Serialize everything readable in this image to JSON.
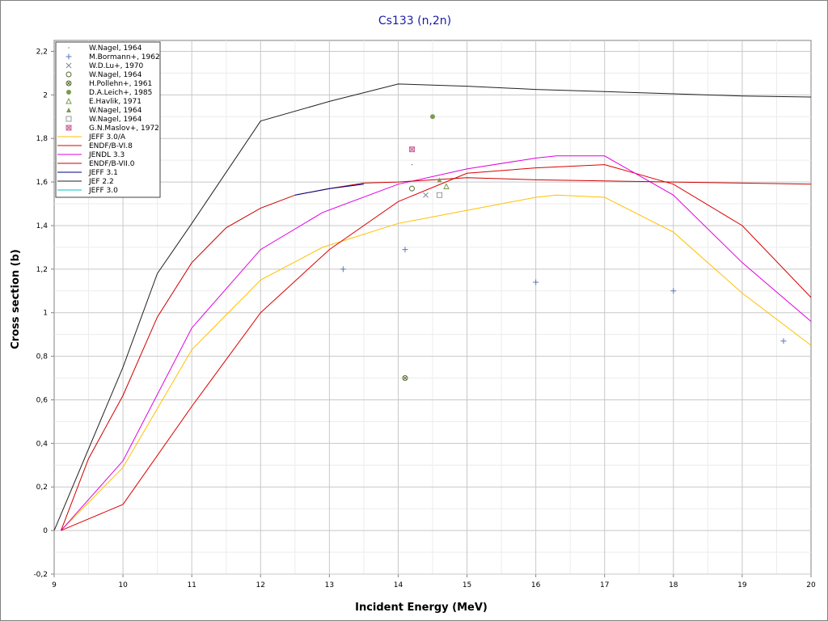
{
  "chart_data": {
    "type": "line",
    "title": "Cs133 (n,2n)",
    "xlabel": "Incident Energy (MeV)",
    "ylabel": "Cross section (b)",
    "xlim": [
      9,
      20
    ],
    "ylim": [
      -0.2,
      2.25
    ],
    "x_ticks": [
      "9",
      "10",
      "11",
      "12",
      "13",
      "14",
      "15",
      "16",
      "17",
      "18",
      "19",
      "20"
    ],
    "y_ticks": [
      "-0,2",
      "0",
      "0,2",
      "0,4",
      "0,6",
      "0,8",
      "1",
      "1,2",
      "1,4",
      "1,6",
      "1,8",
      "2",
      "2,2"
    ],
    "grid": true,
    "legend_position": "top-left",
    "experimental": [
      {
        "name": "W.Nagel, 1964",
        "marker": "dot",
        "color": "#556b2f",
        "points": [
          [
            14.2,
            1.68
          ]
        ]
      },
      {
        "name": "M.Bormann+, 1962",
        "marker": "plus",
        "color": "#5a7ab8",
        "points": [
          [
            13.2,
            1.2
          ],
          [
            14.1,
            1.29
          ],
          [
            16.0,
            1.14
          ],
          [
            18.0,
            1.1
          ],
          [
            19.6,
            0.87
          ]
        ]
      },
      {
        "name": "W.D.Lu+, 1970",
        "marker": "cross",
        "color": "#7a8899",
        "points": [
          [
            14.4,
            1.54
          ]
        ]
      },
      {
        "name": "W.Nagel, 1964",
        "marker": "circle",
        "color": "#556b2f",
        "points": [
          [
            14.2,
            1.57
          ]
        ]
      },
      {
        "name": "H.Pollehn+, 1961",
        "marker": "circle-x",
        "color": "#556b2f",
        "points": [
          [
            14.1,
            0.7
          ]
        ]
      },
      {
        "name": "D.A.Leich+, 1985",
        "marker": "filled-circle",
        "color": "#7a9a50",
        "points": [
          [
            14.5,
            1.9
          ]
        ]
      },
      {
        "name": "E.Havlik, 1971",
        "marker": "triangle",
        "color": "#7a9a50",
        "points": [
          [
            14.7,
            1.58
          ]
        ]
      },
      {
        "name": "W.Nagel, 1964",
        "marker": "filled-triangle",
        "color": "#7a9a50",
        "points": [
          [
            14.6,
            1.61
          ]
        ]
      },
      {
        "name": "W.Nagel, 1964",
        "marker": "square",
        "color": "#999999",
        "points": [
          [
            14.6,
            1.54
          ]
        ]
      },
      {
        "name": "G.N.Maslov+, 1972",
        "marker": "square-x",
        "color": "#cc6699",
        "points": [
          [
            14.2,
            1.75
          ]
        ]
      }
    ],
    "series": [
      {
        "name": "JEFF 3.0/A",
        "color": "#ffc000",
        "x": [
          9.1,
          10,
          11,
          12,
          12.9,
          14,
          15,
          16,
          16.3,
          17,
          18,
          19,
          20
        ],
        "values": [
          0,
          0.29,
          0.83,
          1.15,
          1.3,
          1.41,
          1.47,
          1.53,
          1.54,
          1.53,
          1.37,
          1.09,
          0.85
        ]
      },
      {
        "name": "ENDF/B-VI.8",
        "color": "#dd0000",
        "x": [
          9.1,
          10,
          11,
          12,
          13,
          14,
          15,
          16,
          17,
          18,
          19,
          20
        ],
        "values": [
          0,
          0.12,
          0.57,
          1.0,
          1.29,
          1.51,
          1.64,
          1.665,
          1.68,
          1.59,
          1.4,
          1.07
        ]
      },
      {
        "name": "JENDL 3.3",
        "color": "#e000e0",
        "x": [
          9.1,
          10,
          11,
          12,
          12.9,
          14,
          15,
          16,
          16.3,
          17,
          18,
          19,
          20
        ],
        "values": [
          0,
          0.32,
          0.93,
          1.29,
          1.46,
          1.59,
          1.66,
          1.71,
          1.72,
          1.72,
          1.54,
          1.23,
          0.96
        ]
      },
      {
        "name": "ENDF/B-VII.0",
        "color": "#cc0000",
        "x": [
          9.1,
          9.5,
          10,
          10.5,
          11,
          11.5,
          12,
          12.5,
          13,
          13.5,
          14,
          15,
          16,
          17,
          18,
          19,
          20
        ],
        "values": [
          0,
          0.33,
          0.62,
          0.98,
          1.23,
          1.39,
          1.48,
          1.54,
          1.57,
          1.595,
          1.6,
          1.62,
          1.61,
          1.605,
          1.6,
          1.595,
          1.59
        ]
      },
      {
        "name": "JEFF 3.1",
        "color": "#000080",
        "x": [
          12.5,
          13,
          13.5
        ],
        "values": [
          1.54,
          1.57,
          1.59
        ]
      },
      {
        "name": "JEF 2.2",
        "color": "#222222",
        "x": [
          9,
          10,
          10.5,
          11,
          12,
          13,
          14,
          15,
          16,
          17,
          18,
          19,
          20
        ],
        "values": [
          0,
          0.75,
          1.18,
          1.41,
          1.88,
          1.97,
          2.05,
          2.04,
          2.025,
          2.015,
          2.005,
          1.995,
          1.99
        ]
      },
      {
        "name": "JEFF 3.0",
        "color": "#00c0c0",
        "x": [],
        "values": []
      }
    ]
  }
}
